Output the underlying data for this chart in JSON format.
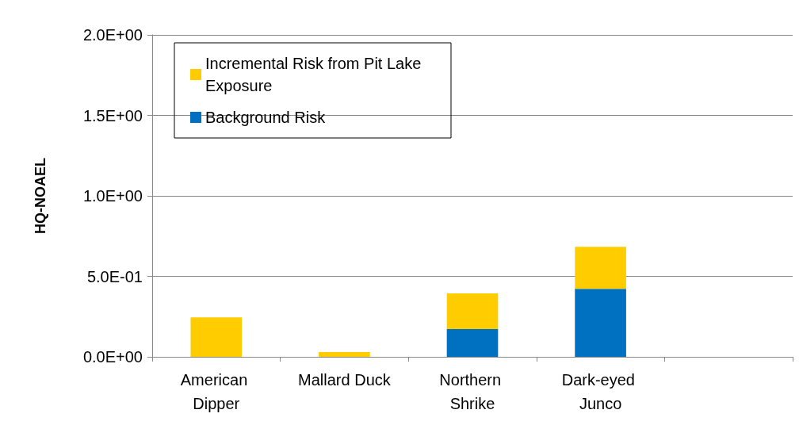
{
  "chart_data": {
    "type": "bar",
    "stacked": true,
    "ylabel": "HQ-NOAEL",
    "categories": [
      "American Dipper",
      "Mallard Duck",
      "Northern Shrike",
      "Dark-eyed Junco",
      null
    ],
    "series": [
      {
        "name": "Background Risk",
        "color": "#0070c0",
        "values": [
          0,
          0,
          0.173,
          0.423,
          null
        ]
      },
      {
        "name": "Incremental Risk from Pit Lake Exposure",
        "color": "#ffcc00",
        "values": [
          0.245,
          0.029,
          0.221,
          0.26,
          null
        ]
      }
    ],
    "ylim": [
      0,
      2
    ],
    "yticks": [
      {
        "value": 0,
        "label": "0.0E+00"
      },
      {
        "value": 0.5,
        "label": "5.0E-01"
      },
      {
        "value": 1,
        "label": "1.0E+00"
      },
      {
        "value": 1.5,
        "label": "1.5E+00"
      },
      {
        "value": 2,
        "label": "2.0E+00"
      }
    ],
    "grid": "y",
    "legend": "top left"
  }
}
